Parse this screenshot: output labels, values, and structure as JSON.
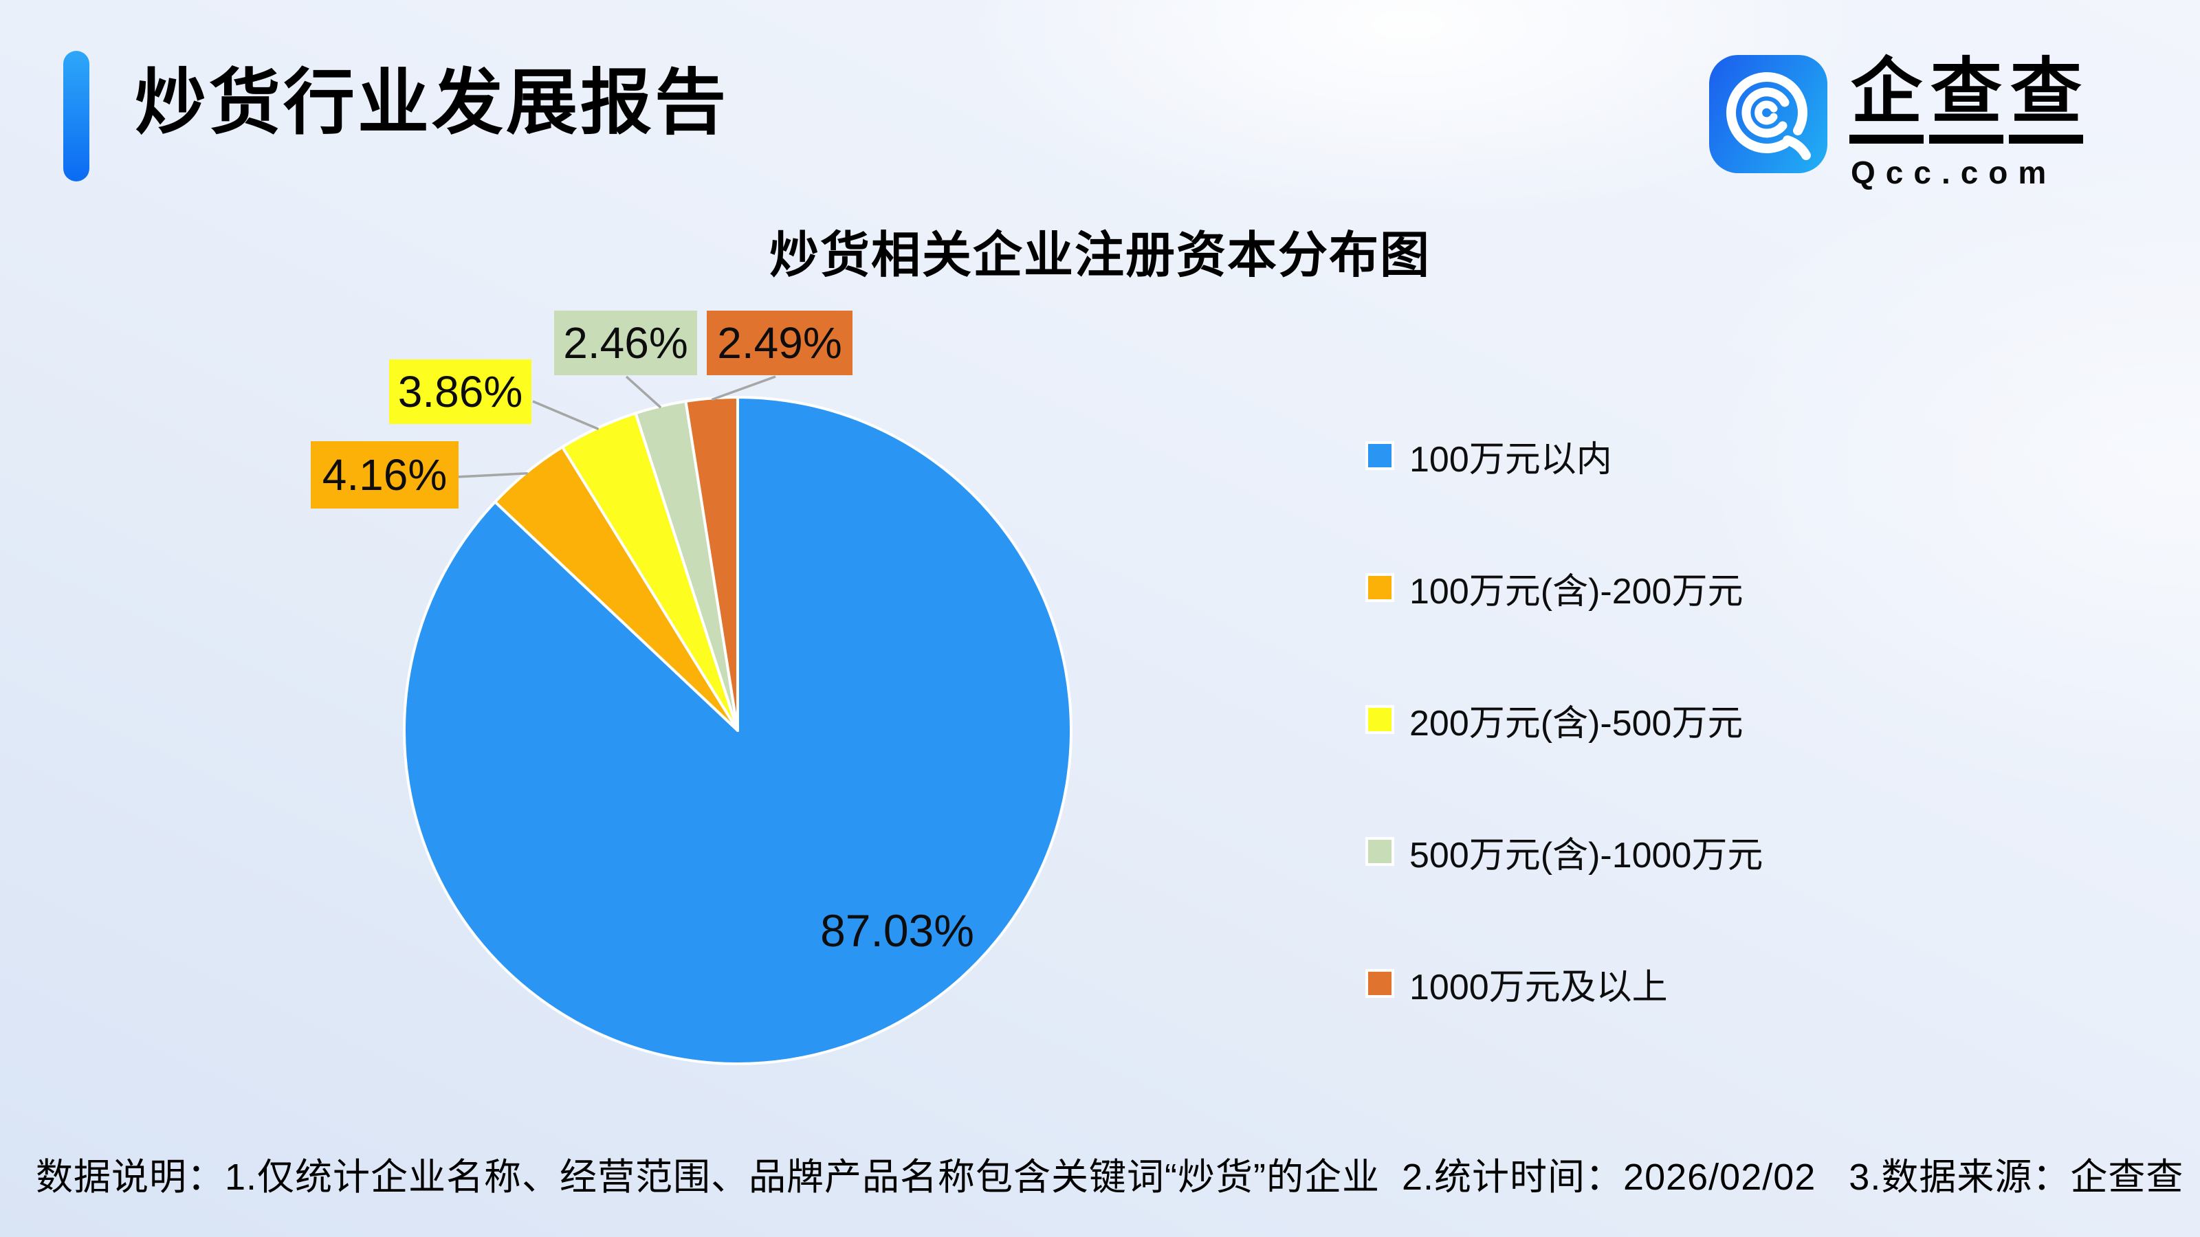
{
  "header": {
    "title": "炒货行业发展报告",
    "logo": {
      "brand": "企查查",
      "domain": "Qcc.com",
      "icon": "qcc-magnifier-q-icon"
    }
  },
  "chart_data": {
    "type": "pie",
    "title": "炒货相关企业注册资本分布图",
    "legend_position": "right",
    "start_angle": "top",
    "direction": "clockwise",
    "slices": [
      {
        "label": "100万元以内",
        "value_pct": 87.03,
        "display": "87.03%",
        "color": "#2A95F3"
      },
      {
        "label": "100万元(含)-200万元",
        "value_pct": 4.16,
        "display": "4.16%",
        "color": "#FBB108"
      },
      {
        "label": "200万元(含)-500万元",
        "value_pct": 3.86,
        "display": "3.86%",
        "color": "#FDFD1F"
      },
      {
        "label": "500万元(含)-1000万元",
        "value_pct": 2.46,
        "display": "2.46%",
        "color": "#C8DCB7"
      },
      {
        "label": "1000万元及以上",
        "value_pct": 2.49,
        "display": "2.49%",
        "color": "#E0742F"
      }
    ]
  },
  "footer": {
    "note": "数据说明：1.仅统计企业名称、经营范围、品牌产品名称包含关键词“炒货”的企业  2.统计时间：2026/02/02   3.数据来源：企查查"
  },
  "colors": {
    "accent_bar_top": "#2EA7F8",
    "accent_bar_bottom": "#0B6BF3",
    "logo_gradient_left": "#1B64EE",
    "logo_gradient_right": "#21AAF4",
    "leader_line": "#A6A6A6",
    "slice_border": "#FFFFFF",
    "text": "#0D0D0D"
  }
}
